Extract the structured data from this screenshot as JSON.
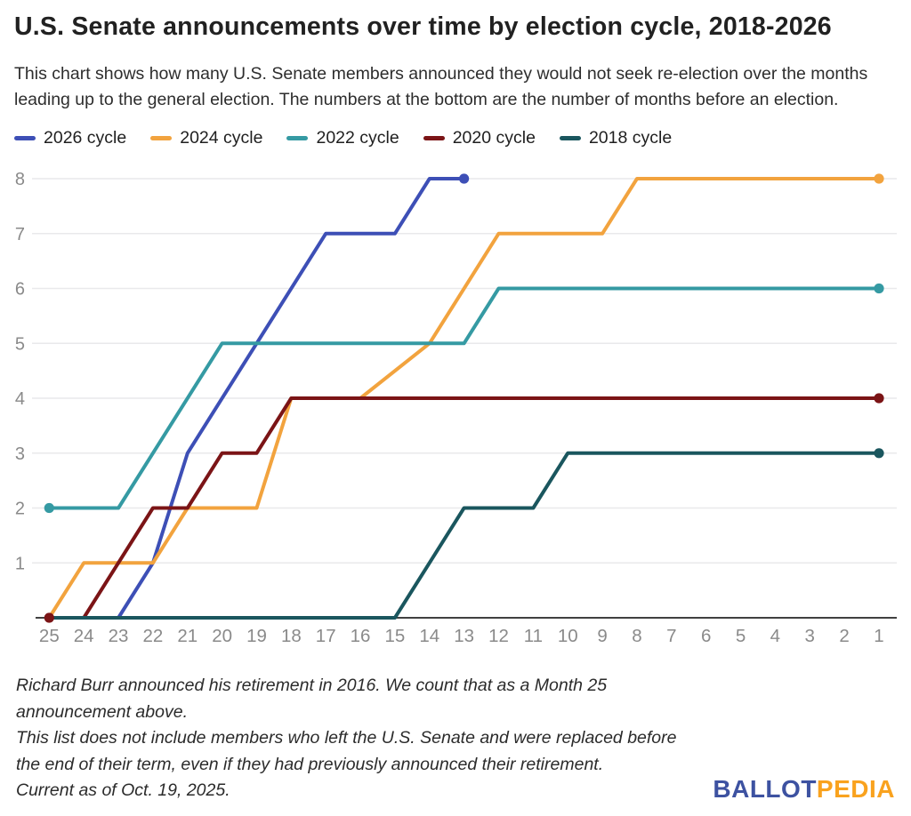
{
  "header": {
    "title": "U.S. Senate announcements over time by election cycle, 2018-2026",
    "subtitle": "This chart shows how many U.S. Senate members announced they would not seek re-election over the months leading up to the general election. The numbers at the bottom are the number of months before an election."
  },
  "chart_data": {
    "type": "line",
    "x_axis": {
      "label": "months before an election",
      "tick_months": [
        25,
        24,
        23,
        22,
        21,
        20,
        19,
        18,
        17,
        16,
        15,
        14,
        13,
        12,
        11,
        10,
        9,
        8,
        7,
        6,
        5,
        4,
        3,
        2,
        1
      ],
      "tick_color": "#8a8a8a"
    },
    "y_axis": {
      "ticks": [
        1,
        2,
        3,
        4,
        5,
        6,
        7,
        8
      ],
      "range": [
        0,
        8.4
      ],
      "tick_color": "#8a8a8a"
    },
    "grid_color": "#e9e9eb",
    "axis_color": "#404040",
    "series": [
      {
        "name": "2026 cycle",
        "color": "#3d4fb6",
        "points": [
          [
            25,
            0
          ],
          [
            23,
            0
          ],
          [
            22,
            1
          ],
          [
            21,
            3
          ],
          [
            17,
            7
          ],
          [
            15,
            7
          ],
          [
            14,
            8
          ],
          [
            13,
            8
          ]
        ],
        "markers": [
          [
            13,
            8
          ]
        ]
      },
      {
        "name": "2024 cycle",
        "color": "#f2a33e",
        "points": [
          [
            25,
            0
          ],
          [
            24,
            1
          ],
          [
            22,
            1
          ],
          [
            21,
            2
          ],
          [
            19,
            2
          ],
          [
            18,
            4
          ],
          [
            16,
            4
          ],
          [
            14,
            5
          ],
          [
            12,
            7
          ],
          [
            9,
            7
          ],
          [
            8,
            8
          ],
          [
            1,
            8
          ]
        ],
        "markers": [
          [
            1,
            8
          ]
        ]
      },
      {
        "name": "2022 cycle",
        "color": "#359aa3",
        "points": [
          [
            25,
            2
          ],
          [
            23,
            2
          ],
          [
            20,
            5
          ],
          [
            13,
            5
          ],
          [
            12,
            6
          ],
          [
            1,
            6
          ]
        ],
        "markers": [
          [
            25,
            2
          ],
          [
            1,
            6
          ]
        ]
      },
      {
        "name": "2020 cycle",
        "color": "#7b1416",
        "points": [
          [
            25,
            0
          ],
          [
            24,
            0
          ],
          [
            22,
            2
          ],
          [
            21,
            2
          ],
          [
            20,
            3
          ],
          [
            19,
            3
          ],
          [
            18,
            4
          ],
          [
            1,
            4
          ]
        ],
        "markers": [
          [
            25,
            0
          ],
          [
            1,
            4
          ]
        ]
      },
      {
        "name": "2018 cycle",
        "color": "#1a565e",
        "points": [
          [
            25,
            0
          ],
          [
            15,
            0
          ],
          [
            13,
            2
          ],
          [
            11,
            2
          ],
          [
            10,
            3
          ],
          [
            1,
            3
          ]
        ],
        "markers": [
          [
            1,
            3
          ]
        ]
      }
    ]
  },
  "footnotes": {
    "lines": [
      "Richard Burr announced his retirement in 2016. We count that as a Month 25",
      "announcement above.",
      "This list does not include members who left the U.S. Senate and were replaced before",
      "the end of their term, even if they had previously announced their retirement."
    ]
  },
  "footer": {
    "current_as_of": "Current as of Oct. 19, 2025.",
    "logo": {
      "ballot": "BALLOT",
      "pedia": "PEDIA",
      "ballot_color": "#3d52a1",
      "pedia_color": "#f9a21e"
    }
  }
}
